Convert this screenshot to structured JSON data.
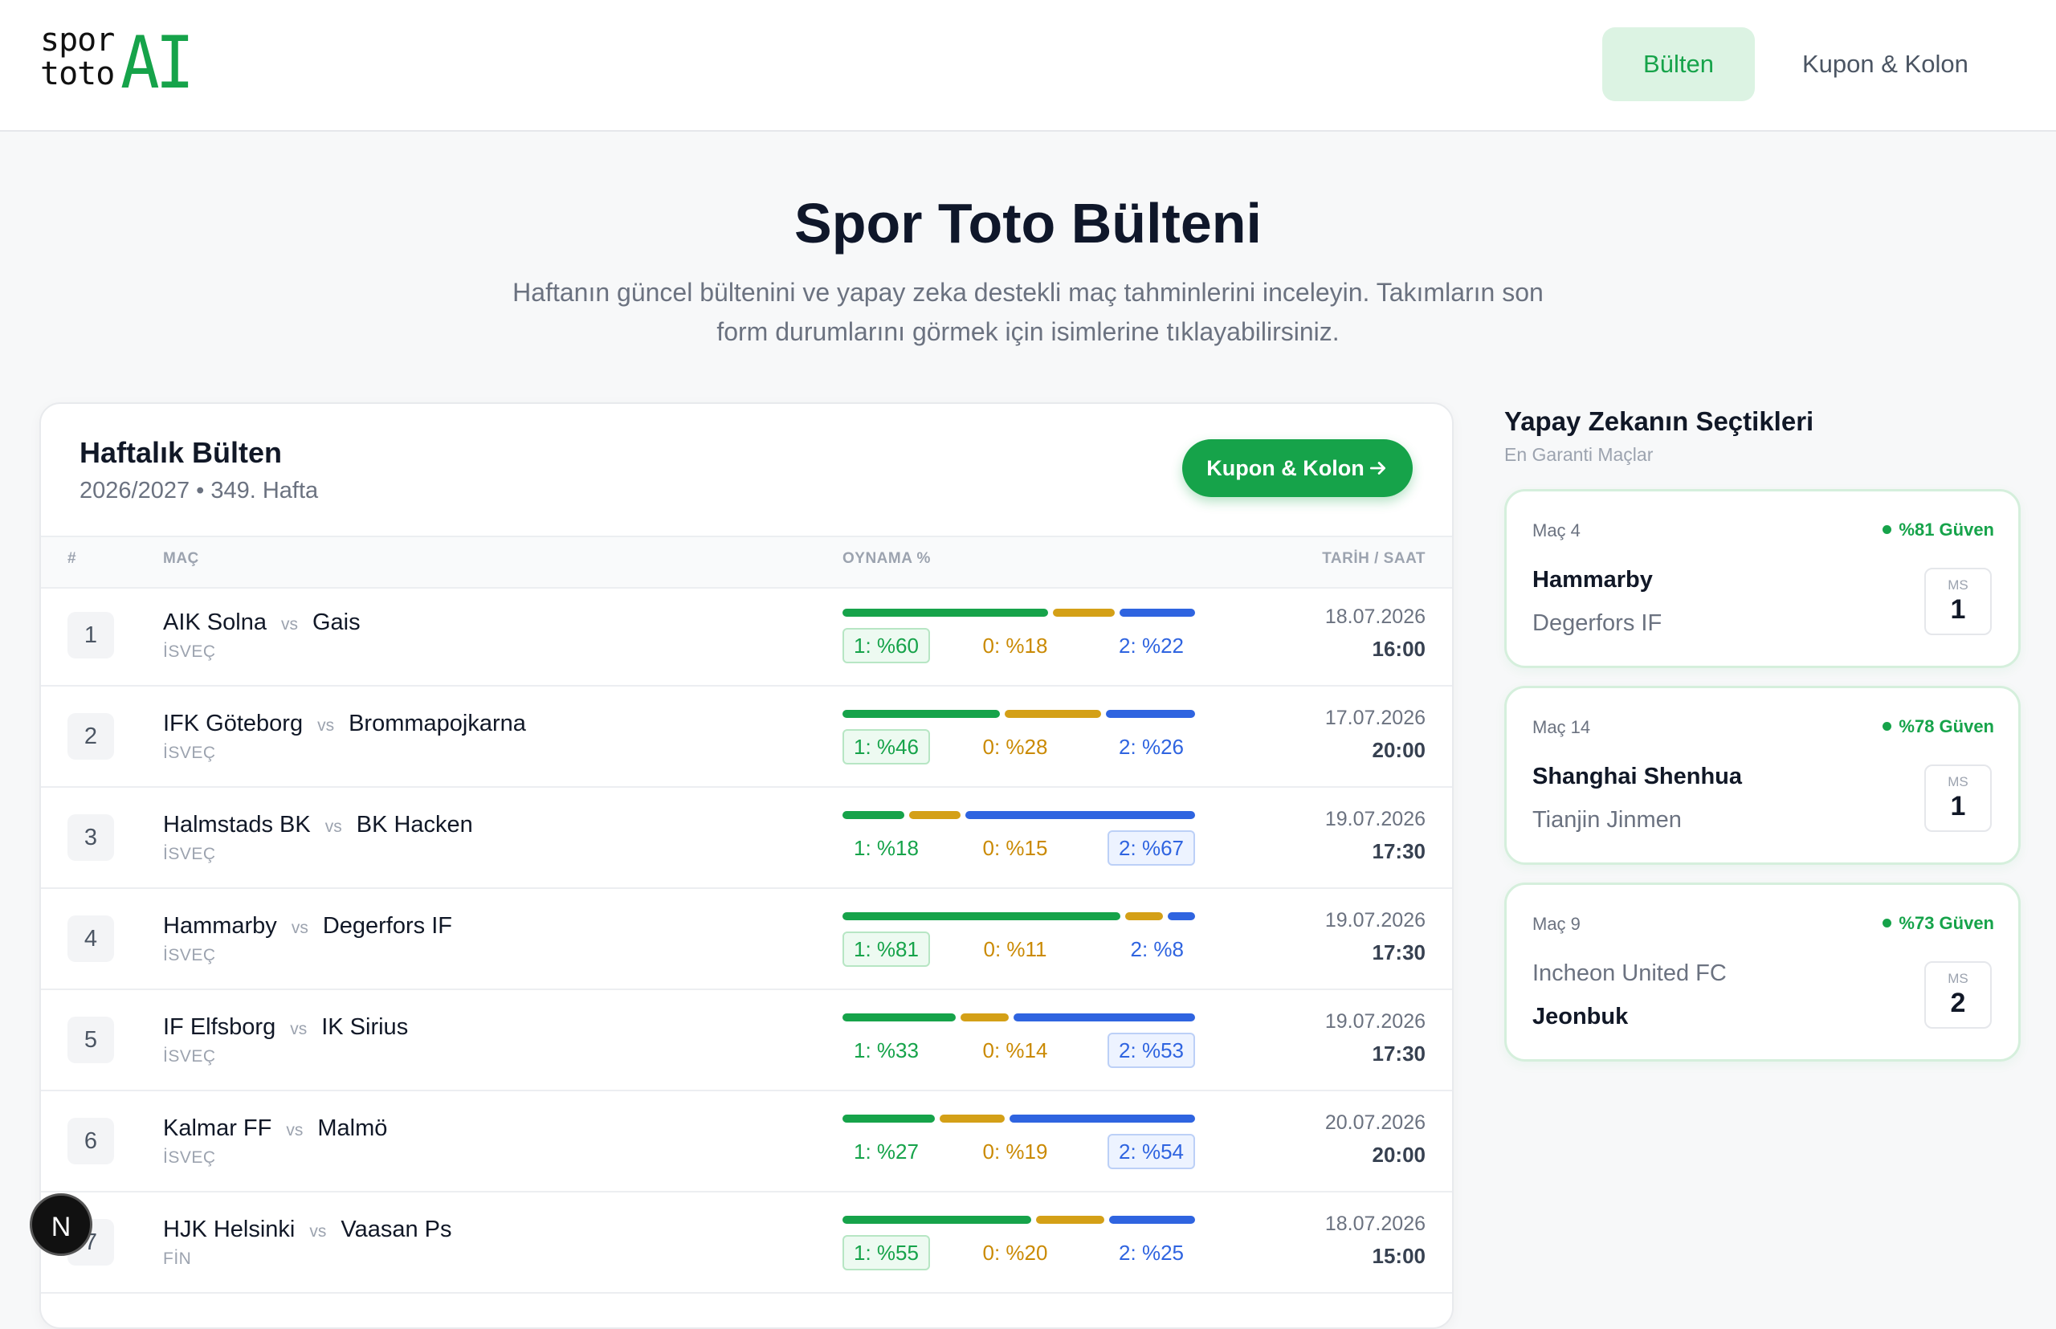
{
  "header": {
    "logo_top": "spor",
    "logo_bottom": "toto",
    "logo_ai": "AI",
    "nav": [
      "Bülten",
      "Kupon & Kolon"
    ]
  },
  "hero": {
    "title": "Spor Toto Bülteni",
    "subtitle": "Haftanın güncel bültenini ve yapay zeka destekli maç tahminlerini inceleyin. Takımların son form durumlarını görmek için isimlerine tıklayabilirsiniz."
  },
  "bulletin": {
    "title": "Haftalık Bülten",
    "season": "2026/2027 • 349. Hafta",
    "button": "Kupon & Kolon",
    "columns": [
      "#",
      "MAÇ",
      "OYNAMA %",
      "TARİH / SAAT"
    ],
    "vs": "vs",
    "rows": [
      {
        "num": 1,
        "home": "AIK Solna",
        "away": "Gais",
        "country": "İSVEÇ",
        "p1": 60,
        "p0": 18,
        "p2": 22,
        "p1_label": "1: %60",
        "p0_label": "0: %18",
        "p2_label": "2: %22",
        "date": "18.07.2026",
        "time": "16:00"
      },
      {
        "num": 2,
        "home": "IFK Göteborg",
        "away": "Brommapojkarna",
        "country": "İSVEÇ",
        "p1": 46,
        "p0": 28,
        "p2": 26,
        "p1_label": "1: %46",
        "p0_label": "0: %28",
        "p2_label": "2: %26",
        "date": "17.07.2026",
        "time": "20:00"
      },
      {
        "num": 3,
        "home": "Halmstads BK",
        "away": "BK Hacken",
        "country": "İSVEÇ",
        "p1": 18,
        "p0": 15,
        "p2": 67,
        "p1_label": "1: %18",
        "p0_label": "0: %15",
        "p2_label": "2: %67",
        "date": "19.07.2026",
        "time": "17:30"
      },
      {
        "num": 4,
        "home": "Hammarby",
        "away": "Degerfors IF",
        "country": "İSVEÇ",
        "p1": 81,
        "p0": 11,
        "p2": 8,
        "p1_label": "1: %81",
        "p0_label": "0: %11",
        "p2_label": "2: %8",
        "date": "19.07.2026",
        "time": "17:30"
      },
      {
        "num": 5,
        "home": "IF Elfsborg",
        "away": "IK Sirius",
        "country": "İSVEÇ",
        "p1": 33,
        "p0": 14,
        "p2": 53,
        "p1_label": "1: %33",
        "p0_label": "0: %14",
        "p2_label": "2: %53",
        "date": "19.07.2026",
        "time": "17:30"
      },
      {
        "num": 6,
        "home": "Kalmar FF",
        "away": "Malmö",
        "country": "İSVEÇ",
        "p1": 27,
        "p0": 19,
        "p2": 54,
        "p1_label": "1: %27",
        "p0_label": "0: %19",
        "p2_label": "2: %54",
        "date": "20.07.2026",
        "time": "20:00"
      },
      {
        "num": 7,
        "home": "HJK Helsinki",
        "away": "Vaasan Ps",
        "country": "FİN",
        "p1": 55,
        "p0": 20,
        "p2": 25,
        "p1_label": "1: %55",
        "p0_label": "0: %20",
        "p2_label": "2: %25",
        "date": "18.07.2026",
        "time": "15:00"
      }
    ]
  },
  "picks": {
    "title": "Yapay Zekanın Seçtikleri",
    "subtitle": "En Garanti Maçlar",
    "ms": "MS",
    "cards": [
      {
        "match": "Maç 4",
        "confidence": "%81 Güven",
        "home": "Hammarby",
        "away": "Degerfors IF",
        "pick": "1"
      },
      {
        "match": "Maç 14",
        "confidence": "%78 Güven",
        "home": "Shanghai Shenhua",
        "away": "Tianjin Jinmen",
        "pick": "1"
      },
      {
        "match": "Maç 9",
        "confidence": "%73 Güven",
        "home": "Incheon United FC",
        "away": "Jeonbuk",
        "pick": "2"
      }
    ]
  },
  "badge": "N"
}
